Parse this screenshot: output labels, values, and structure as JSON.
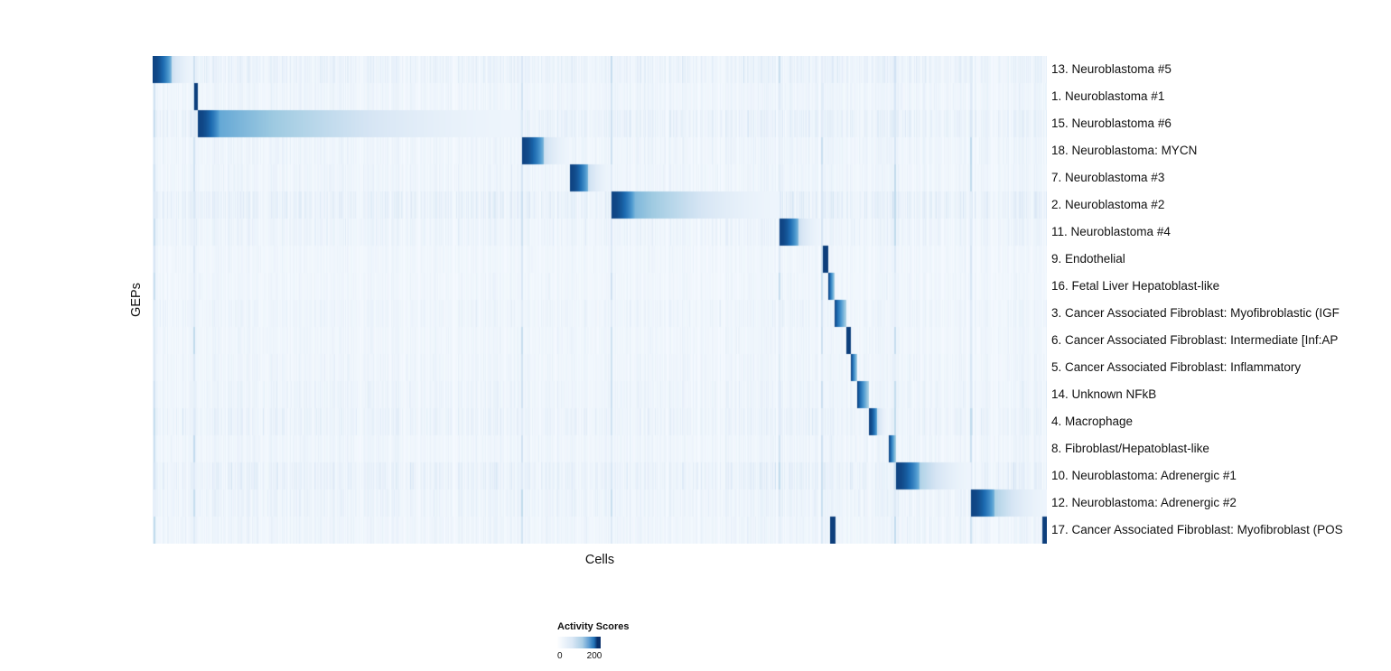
{
  "page": {
    "background": "#ffffff"
  },
  "chart_data": {
    "type": "heatmap",
    "title": "",
    "xlabel": "Cells",
    "ylabel": "GEPs",
    "colormap": "Blues",
    "colors": {
      "low": "#f7fbff",
      "mid": "#6baed6",
      "high": "#08306b"
    },
    "legend": {
      "title": "Activity Scores",
      "min": 0,
      "max": 200,
      "min_label": "0",
      "max_label": "200"
    },
    "x_axis": {
      "unit": "cells (ordered by dominant GEP)",
      "range_frac": [
        0,
        1
      ]
    },
    "global_stripes": [
      0.001,
      0.0455,
      0.412,
      0.512,
      0.7,
      0.747,
      0.829,
      0.914
    ],
    "rows": [
      {
        "label": "13. Neuroblastoma #5",
        "block": [
          0.0,
          0.045
        ],
        "noise": 0.45
      },
      {
        "label": "1. Neuroblastoma #1",
        "block": [
          0.046,
          0.051
        ],
        "noise": 0.3
      },
      {
        "label": "15. Neuroblastoma #6",
        "block": [
          0.051,
          0.41
        ],
        "noise": 0.5
      },
      {
        "label": "18. Neuroblastoma: MYCN",
        "block": [
          0.413,
          0.466
        ],
        "noise": 0.3
      },
      {
        "label": "7. Neuroblastoma #3",
        "block": [
          0.467,
          0.511
        ],
        "noise": 0.3
      },
      {
        "label": "2. Neuroblastoma #2",
        "block": [
          0.513,
          0.701
        ],
        "noise": 0.55
      },
      {
        "label": "11. Neuroblastoma #4",
        "block": [
          0.701,
          0.746
        ],
        "noise": 0.35
      },
      {
        "label": "9. Endothelial",
        "block": [
          0.749,
          0.756
        ],
        "noise": 0.22
      },
      {
        "label": "16. Fetal Liver Hepatoblast-like",
        "block": [
          0.756,
          0.763
        ],
        "noise": 0.22
      },
      {
        "label": "3. Cancer Associated Fibroblast: Myofibroblastic (IGF",
        "block": [
          0.763,
          0.776
        ],
        "noise": 0.3
      },
      {
        "label": "6. Cancer Associated Fibroblast: Intermediate [Inf:AP",
        "block": [
          0.776,
          0.781
        ],
        "noise": 0.25
      },
      {
        "label": "5. Cancer Associated Fibroblast: Inflammatory",
        "block": [
          0.781,
          0.788
        ],
        "noise": 0.28
      },
      {
        "label": "14. Unknown NFkB",
        "block": [
          0.788,
          0.801
        ],
        "noise": 0.33
      },
      {
        "label": "4. Macrophage",
        "block": [
          0.801,
          0.821
        ],
        "noise": 0.42
      },
      {
        "label": "8. Fibroblast/Hepatoblast-like",
        "block": [
          0.823,
          0.831
        ],
        "noise": 0.28
      },
      {
        "label": "10. Neuroblastoma: Adrenergic #1",
        "block": [
          0.831,
          0.915
        ],
        "noise": 0.5
      },
      {
        "label": "12. Neuroblastoma: Adrenergic #2",
        "block": [
          0.915,
          1.0
        ],
        "noise": 0.38
      },
      {
        "label": "17. Cancer Associated Fibroblast: Myofibroblast (POS",
        "block": [
          0.758,
          0.764
        ],
        "block2": [
          0.995,
          1.0
        ],
        "noise": 0.3
      }
    ]
  }
}
